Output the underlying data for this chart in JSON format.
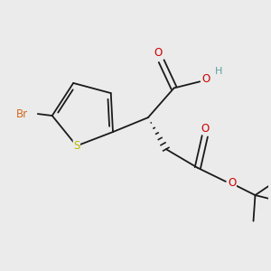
{
  "bg_color": "#ebebeb",
  "bond_color": "#1a1a1a",
  "atoms": {
    "Br": {
      "color": "#d4691e",
      "fontsize": 8.5
    },
    "S": {
      "color": "#b8b800",
      "fontsize": 8.5
    },
    "O": {
      "color": "#cc0000",
      "fontsize": 8.5
    },
    "H": {
      "color": "#5f9ea0",
      "fontsize": 8.0
    }
  },
  "line_width": 1.3
}
